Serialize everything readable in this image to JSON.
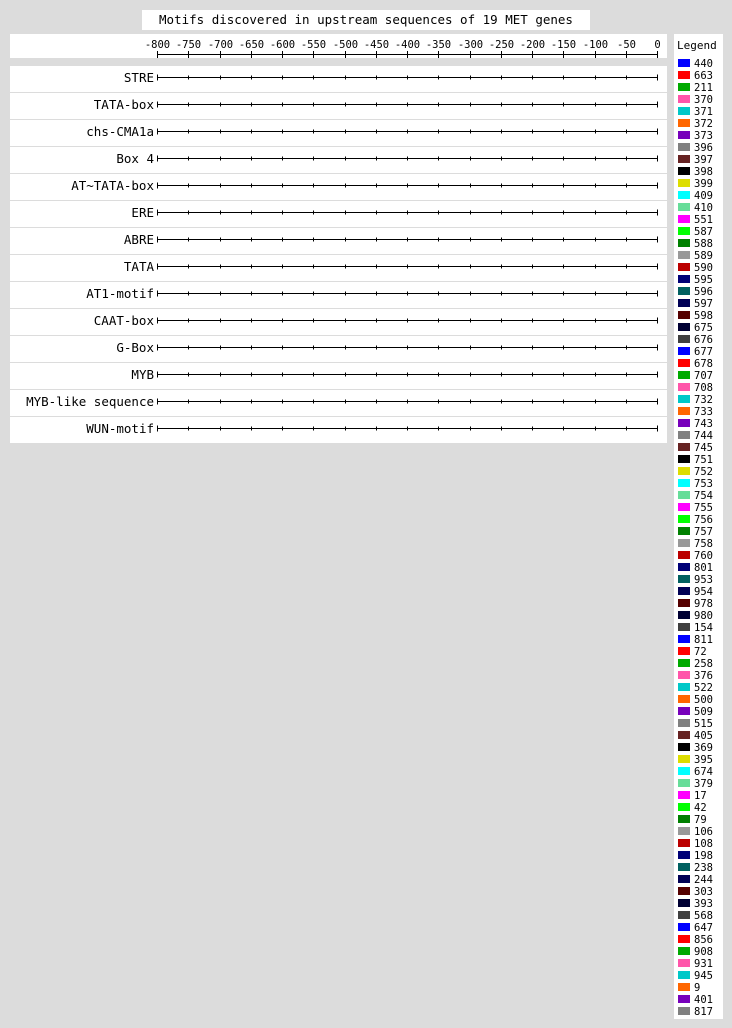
{
  "title": "Motifs discovered in upstream sequences of 19 MET genes",
  "chart_data": {
    "type": "diagram",
    "axis": {
      "min": -800,
      "max": 0,
      "tick_step": 50,
      "tick_labels": [
        "-800",
        "-750",
        "-700",
        "-650",
        "-600",
        "-550",
        "-500",
        "-450",
        "-400",
        "-350",
        "-300",
        "-250",
        "-200",
        "-150",
        "-100",
        "-50",
        "0"
      ]
    },
    "motifs": [
      "STRE",
      "TATA-box",
      "chs-CMA1a",
      "Box 4",
      "AT~TATA-box",
      "ERE",
      "ABRE",
      "TATA",
      "AT1-motif",
      "CAAT-box",
      "G-Box",
      "MYB",
      "MYB-like sequence",
      "WUN-motif"
    ]
  },
  "legend": {
    "title": "Legend",
    "palette": [
      "#0000ff",
      "#ff0000",
      "#00aa00",
      "#ff55aa",
      "#00c8c8",
      "#ff6600",
      "#7700bb",
      "#808080",
      "#662222",
      "#000000",
      "#dddd00",
      "#00ffff",
      "#66dd99",
      "#ff00ff",
      "#00ff00",
      "#008000",
      "#999999",
      "#bb0000",
      "#000077",
      "#006060",
      "#000055",
      "#550000",
      "#000033",
      "#404040"
    ],
    "items": [
      "440",
      "663",
      "211",
      "370",
      "371",
      "372",
      "373",
      "396",
      "397",
      "398",
      "399",
      "409",
      "410",
      "551",
      "587",
      "588",
      "589",
      "590",
      "595",
      "596",
      "597",
      "598",
      "675",
      "676",
      "677",
      "678",
      "707",
      "708",
      "732",
      "733",
      "743",
      "744",
      "745",
      "751",
      "752",
      "753",
      "754",
      "755",
      "756",
      "757",
      "758",
      "760",
      "801",
      "953",
      "954",
      "978",
      "980",
      "154",
      "811",
      "72",
      "258",
      "376",
      "522",
      "500",
      "509",
      "515",
      "405",
      "369",
      "395",
      "674",
      "379",
      "17",
      "42",
      "79",
      "106",
      "108",
      "198",
      "238",
      "244",
      "303",
      "393",
      "568",
      "647",
      "856",
      "908",
      "931",
      "945",
      "9",
      "401",
      "817"
    ]
  }
}
